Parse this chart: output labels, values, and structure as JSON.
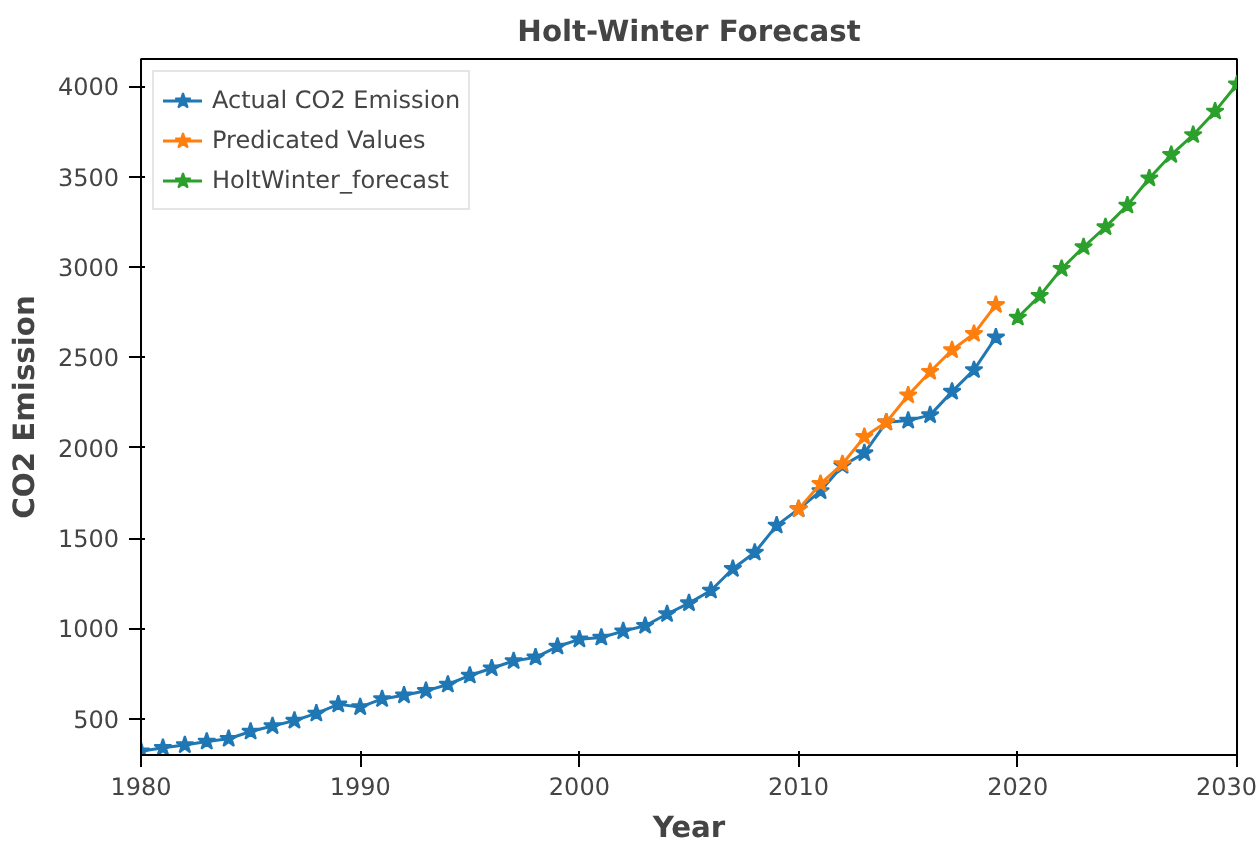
{
  "chart_data": {
    "type": "line",
    "title": "Holt-Winter Forecast",
    "xlabel": "Year",
    "ylabel": "CO2 Emission",
    "xlim": [
      1980,
      2030
    ],
    "xticks": [
      1980,
      1990,
      2000,
      2010,
      2020,
      2030
    ],
    "ylim": [
      300,
      4150
    ],
    "yticks": [
      500,
      1000,
      1500,
      2000,
      2500,
      3000,
      3500,
      4000
    ],
    "grid": false,
    "legend": "top left",
    "marker": "star",
    "line_style": "solid",
    "series": [
      {
        "name": "Actual CO2 Emission",
        "color": "#1f77b4",
        "x": [
          1980,
          1981,
          1982,
          1983,
          1984,
          1985,
          1986,
          1987,
          1988,
          1989,
          1990,
          1991,
          1992,
          1993,
          1994,
          1995,
          1996,
          1997,
          1998,
          1999,
          2000,
          2001,
          2002,
          2003,
          2004,
          2005,
          2006,
          2007,
          2008,
          2009,
          2010,
          2011,
          2012,
          2013,
          2014,
          2015,
          2016,
          2017,
          2018,
          2019
        ],
        "values": [
          320,
          340,
          355,
          375,
          390,
          430,
          460,
          490,
          530,
          580,
          565,
          610,
          630,
          655,
          690,
          740,
          780,
          820,
          840,
          900,
          940,
          950,
          985,
          1015,
          1080,
          1140,
          1210,
          1330,
          1420,
          1570,
          1660,
          1760,
          1900,
          1970,
          2140,
          2150,
          2180,
          2310,
          2430,
          2610
        ]
      },
      {
        "name": "Predicated Values",
        "color": "#ff7f0e",
        "x": [
          2010,
          2011,
          2012,
          2013,
          2014,
          2015,
          2016,
          2017,
          2018,
          2019
        ],
        "values": [
          1660,
          1800,
          1910,
          2060,
          2140,
          2290,
          2420,
          2540,
          2630,
          2790
        ]
      },
      {
        "name": "HoltWinter_forecast",
        "color": "#2ca02c",
        "x": [
          2020,
          2021,
          2022,
          2023,
          2024,
          2025,
          2026,
          2027,
          2028,
          2029,
          2030
        ],
        "values": [
          2720,
          2840,
          2990,
          3110,
          3220,
          3340,
          3490,
          3620,
          3730,
          3860,
          4010
        ]
      }
    ]
  }
}
